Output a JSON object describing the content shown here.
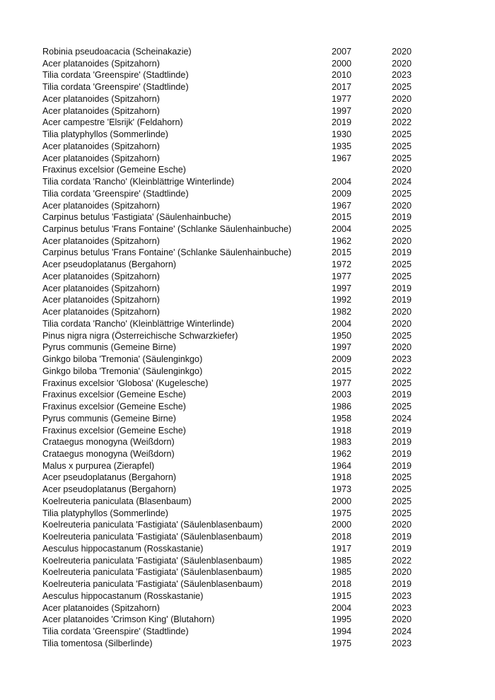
{
  "rows": [
    {
      "name": "Robinia pseudoacacia (Scheinakazie)",
      "year1": "2007",
      "year2": "2020"
    },
    {
      "name": "Acer platanoides (Spitzahorn)",
      "year1": "2000",
      "year2": "2020"
    },
    {
      "name": "Tilia cordata 'Greenspire' (Stadtlinde)",
      "year1": "2010",
      "year2": "2023"
    },
    {
      "name": "Tilia cordata 'Greenspire' (Stadtlinde)",
      "year1": "2017",
      "year2": "2025"
    },
    {
      "name": "Acer platanoides (Spitzahorn)",
      "year1": "1977",
      "year2": "2020"
    },
    {
      "name": "Acer platanoides (Spitzahorn)",
      "year1": "1997",
      "year2": "2020"
    },
    {
      "name": "Acer campestre 'Elsrijk' (Feldahorn)",
      "year1": "2019",
      "year2": "2022"
    },
    {
      "name": "Tilia platyphyllos (Sommerlinde)",
      "year1": "1930",
      "year2": "2025"
    },
    {
      "name": "Acer platanoides (Spitzahorn)",
      "year1": "1935",
      "year2": "2025"
    },
    {
      "name": "Acer platanoides (Spitzahorn)",
      "year1": "1967",
      "year2": "2025"
    },
    {
      "name": "Fraxinus excelsior (Gemeine Esche)",
      "year1": "",
      "year2": "2020"
    },
    {
      "name": "Tilia cordata 'Rancho' (Kleinblättrige Winterlinde)",
      "year1": "2004",
      "year2": "2024"
    },
    {
      "name": "Tilia cordata 'Greenspire' (Stadtlinde)",
      "year1": "2009",
      "year2": "2025"
    },
    {
      "name": "Acer platanoides (Spitzahorn)",
      "year1": "1967",
      "year2": "2020"
    },
    {
      "name": "Carpinus betulus 'Fastigiata' (Säulenhainbuche)",
      "year1": "2015",
      "year2": "2019"
    },
    {
      "name": "Carpinus betulus 'Frans Fontaine' (Schlanke Säulenhainbuche)",
      "year1": "2004",
      "year2": "2025"
    },
    {
      "name": "Acer platanoides (Spitzahorn)",
      "year1": "1962",
      "year2": "2020"
    },
    {
      "name": "Carpinus betulus 'Frans Fontaine' (Schlanke Säulenhainbuche)",
      "year1": "2015",
      "year2": "2019"
    },
    {
      "name": "Acer pseudoplatanus (Bergahorn)",
      "year1": "1972",
      "year2": "2025"
    },
    {
      "name": "Acer platanoides (Spitzahorn)",
      "year1": "1977",
      "year2": "2025"
    },
    {
      "name": "Acer platanoides (Spitzahorn)",
      "year1": "1997",
      "year2": "2019"
    },
    {
      "name": "Acer platanoides (Spitzahorn)",
      "year1": "1992",
      "year2": "2019"
    },
    {
      "name": "Acer platanoides (Spitzahorn)",
      "year1": "1982",
      "year2": "2020"
    },
    {
      "name": "Tilia cordata 'Rancho' (Kleinblättrige Winterlinde)",
      "year1": "2004",
      "year2": "2020"
    },
    {
      "name": "Pinus nigra nigra (Österreichische Schwarzkiefer)",
      "year1": "1950",
      "year2": "2025"
    },
    {
      "name": "Pyrus communis (Gemeine Birne)",
      "year1": "1997",
      "year2": "2020"
    },
    {
      "name": "Ginkgo biloba 'Tremonia' (Säulenginkgo)",
      "year1": "2009",
      "year2": "2023"
    },
    {
      "name": "Ginkgo biloba 'Tremonia' (Säulenginkgo)",
      "year1": "2015",
      "year2": "2022"
    },
    {
      "name": "Fraxinus excelsior 'Globosa' (Kugelesche)",
      "year1": "1977",
      "year2": "2025"
    },
    {
      "name": "Fraxinus excelsior (Gemeine Esche)",
      "year1": "2003",
      "year2": "2019"
    },
    {
      "name": "Fraxinus excelsior (Gemeine Esche)",
      "year1": "1986",
      "year2": "2025"
    },
    {
      "name": "Pyrus communis (Gemeine Birne)",
      "year1": "1958",
      "year2": "2024"
    },
    {
      "name": "Fraxinus excelsior (Gemeine Esche)",
      "year1": "1918",
      "year2": "2019"
    },
    {
      "name": "Crataegus monogyna (Weißdorn)",
      "year1": "1983",
      "year2": "2019"
    },
    {
      "name": "Crataegus monogyna (Weißdorn)",
      "year1": "1962",
      "year2": "2019"
    },
    {
      "name": "Malus x purpurea (Zierapfel)",
      "year1": "1964",
      "year2": "2019"
    },
    {
      "name": "Acer pseudoplatanus (Bergahorn)",
      "year1": "1918",
      "year2": "2025"
    },
    {
      "name": "Acer pseudoplatanus (Bergahorn)",
      "year1": "1973",
      "year2": "2025"
    },
    {
      "name": "Koelreuteria paniculata (Blasenbaum)",
      "year1": "2000",
      "year2": "2025"
    },
    {
      "name": "Tilia platyphyllos (Sommerlinde)",
      "year1": "1975",
      "year2": "2025"
    },
    {
      "name": "Koelreuteria paniculata 'Fastigiata' (Säulenblasenbaum)",
      "year1": "2000",
      "year2": "2020"
    },
    {
      "name": "Koelreuteria paniculata 'Fastigiata' (Säulenblasenbaum)",
      "year1": "2018",
      "year2": "2019"
    },
    {
      "name": "Aesculus hippocastanum (Rosskastanie)",
      "year1": "1917",
      "year2": "2019"
    },
    {
      "name": "Koelreuteria paniculata 'Fastigiata' (Säulenblasenbaum)",
      "year1": "1985",
      "year2": "2022"
    },
    {
      "name": "Koelreuteria paniculata 'Fastigiata' (Säulenblasenbaum)",
      "year1": "1985",
      "year2": "2020"
    },
    {
      "name": "Koelreuteria paniculata 'Fastigiata' (Säulenblasenbaum)",
      "year1": "2018",
      "year2": "2019"
    },
    {
      "name": "Aesculus hippocastanum (Rosskastanie)",
      "year1": "1915",
      "year2": "2023"
    },
    {
      "name": "Acer platanoides (Spitzahorn)",
      "year1": "2004",
      "year2": "2023"
    },
    {
      "name": "Acer platanoides 'Crimson King' (Blutahorn)",
      "year1": "1995",
      "year2": "2020"
    },
    {
      "name": "Tilia cordata 'Greenspire' (Stadtlinde)",
      "year1": "1994",
      "year2": "2024"
    },
    {
      "name": "Tilia tomentosa (Silberlinde)",
      "year1": "1975",
      "year2": "2023"
    }
  ]
}
